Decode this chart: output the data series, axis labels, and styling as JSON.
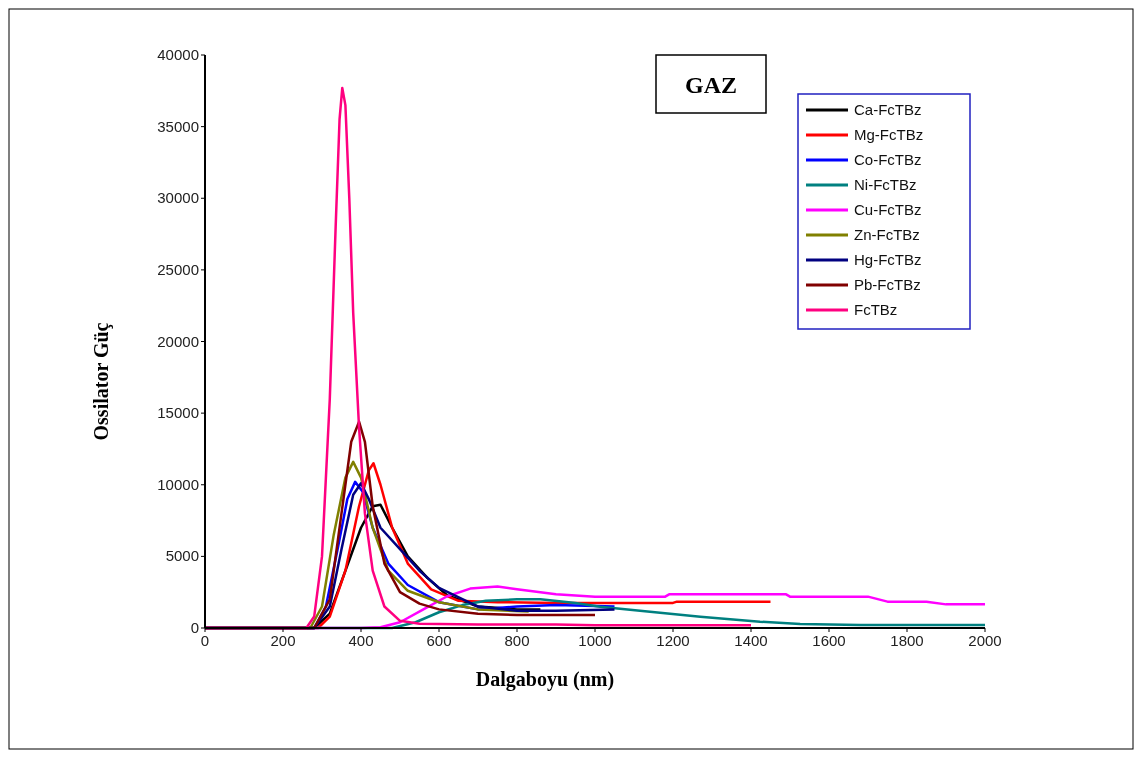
{
  "chart_data": {
    "type": "line",
    "xlabel": "Dalgaboyu (nm)",
    "ylabel": "Ossilator Güç",
    "annotations": [
      "GAZ"
    ],
    "xlim": [
      0,
      2000
    ],
    "xticks": [
      0,
      200,
      400,
      600,
      800,
      1000,
      1200,
      1400,
      1600,
      1800,
      2000
    ],
    "ylim": [
      0,
      40000
    ],
    "yticks": [
      0,
      5000,
      10000,
      15000,
      20000,
      25000,
      30000,
      35000,
      40000
    ],
    "grid": false,
    "legend": "top right",
    "marker": "none",
    "line_style": "solid",
    "series": [
      {
        "name": "Ca-FcTBz",
        "color": "#000000",
        "x": [
          0,
          280,
          320,
          360,
          400,
          430,
          450,
          480,
          520,
          570,
          620,
          700,
          800,
          860
        ],
        "values": [
          0,
          0,
          1000,
          4000,
          7000,
          8500,
          8600,
          7000,
          5000,
          3500,
          2300,
          1500,
          1300,
          1300
        ]
      },
      {
        "name": "Mg-FcTBz",
        "color": "#ff0000",
        "x": [
          0,
          290,
          320,
          360,
          395,
          420,
          432,
          450,
          480,
          520,
          580,
          650,
          750,
          900,
          1200,
          1210,
          1450
        ],
        "values": [
          0,
          0,
          800,
          4000,
          8500,
          11000,
          11500,
          10000,
          7000,
          4500,
          2700,
          1900,
          1800,
          1750,
          1750,
          1840,
          1840
        ]
      },
      {
        "name": "Co-FcTBz",
        "color": "#0000ff",
        "x": [
          0,
          280,
          310,
          340,
          365,
          385,
          405,
          430,
          470,
          520,
          600,
          700,
          800,
          900,
          1050
        ],
        "values": [
          0,
          0,
          1500,
          5500,
          9000,
          10200,
          9500,
          7000,
          4500,
          3000,
          1800,
          1300,
          1500,
          1600,
          1500
        ]
      },
      {
        "name": "Ni-FcTBz",
        "color": "#008080",
        "x": [
          0,
          480,
          540,
          600,
          660,
          720,
          800,
          860,
          950,
          1013,
          1141,
          1270,
          1423,
          1526,
          1680,
          2000
        ],
        "values": [
          0,
          0,
          400,
          1100,
          1600,
          1900,
          2000,
          2000,
          1750,
          1490,
          1140,
          790,
          440,
          280,
          210,
          210
        ]
      },
      {
        "name": "Cu-FcTBz",
        "color": "#ff00ff",
        "x": [
          0,
          400,
          450,
          500,
          560,
          620,
          680,
          750,
          800,
          900,
          1000,
          1180,
          1190,
          1490,
          1500,
          1700,
          1750,
          1850,
          1900,
          2000
        ],
        "values": [
          0,
          0,
          50,
          400,
          1300,
          2200,
          2750,
          2900,
          2700,
          2350,
          2190,
          2190,
          2350,
          2350,
          2190,
          2190,
          1840,
          1840,
          1650,
          1650
        ]
      },
      {
        "name": "Zn-FcTBz",
        "color": "#808000",
        "x": [
          0,
          270,
          300,
          330,
          360,
          380,
          400,
          430,
          470,
          520,
          600,
          700,
          830
        ],
        "values": [
          0,
          0,
          1500,
          6500,
          10500,
          11600,
          10500,
          7000,
          4000,
          2600,
          1800,
          1300,
          1150
        ]
      },
      {
        "name": "Hg-FcTBz",
        "color": "#000080",
        "x": [
          0,
          280,
          320,
          350,
          380,
          400,
          420,
          450,
          500,
          550,
          600,
          700,
          800,
          900,
          1050
        ],
        "values": [
          0,
          0,
          1500,
          5500,
          9300,
          10100,
          9000,
          7000,
          5500,
          4000,
          2800,
          1500,
          1200,
          1200,
          1300
        ]
      },
      {
        "name": "Pb-FcTBz",
        "color": "#800000",
        "x": [
          0,
          280,
          320,
          350,
          375,
          395,
          410,
          430,
          460,
          500,
          550,
          600,
          700,
          800,
          1000
        ],
        "values": [
          0,
          0,
          2000,
          8000,
          13000,
          14400,
          13000,
          8500,
          4500,
          2500,
          1700,
          1300,
          1000,
          900,
          900
        ]
      },
      {
        "name": "FcTBz",
        "color": "#ff0080",
        "x": [
          0,
          260,
          280,
          300,
          320,
          335,
          345,
          352,
          360,
          370,
          380,
          395,
          410,
          430,
          460,
          500,
          550,
          700,
          900,
          1000,
          1400
        ],
        "values": [
          0,
          0,
          800,
          5000,
          16000,
          28000,
          35500,
          37700,
          36500,
          30000,
          22000,
          14000,
          8000,
          4000,
          1500,
          500,
          300,
          250,
          250,
          200,
          200
        ]
      }
    ]
  }
}
